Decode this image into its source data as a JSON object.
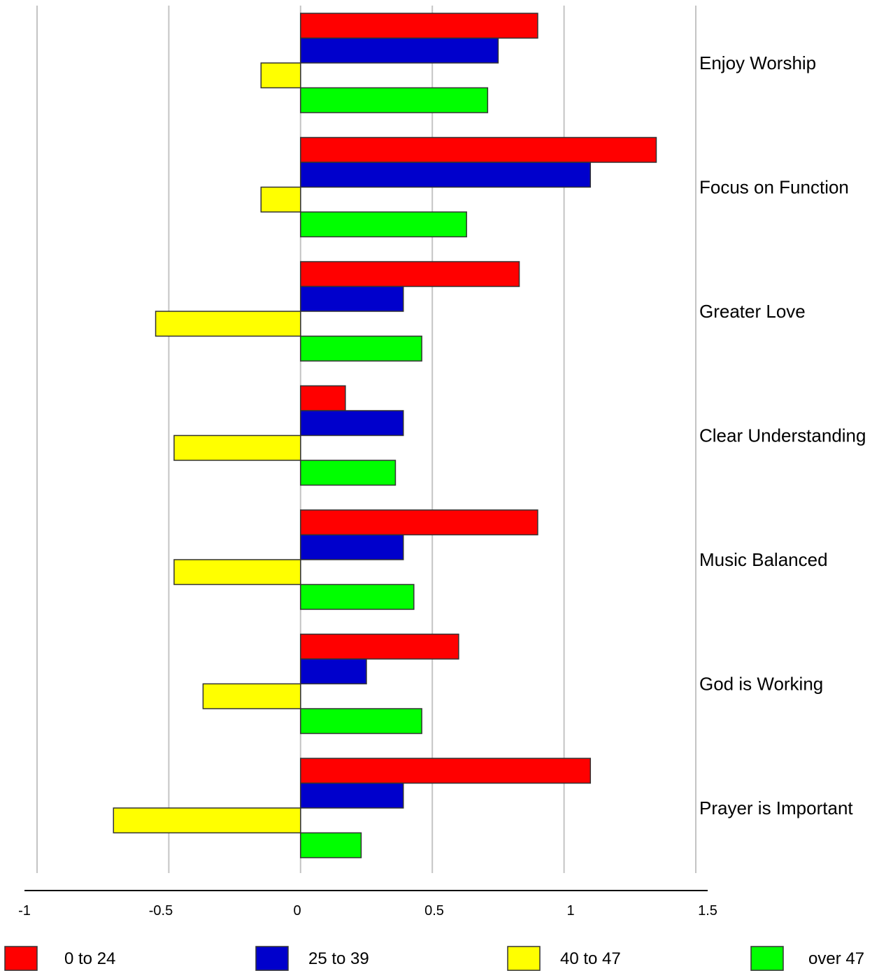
{
  "chart_data": {
    "type": "bar",
    "orientation": "horizontal",
    "categories": [
      "Enjoy Worship",
      "Focus on Function",
      "Greater Love",
      "Clear Understanding",
      "Music Balanced",
      "God is Working",
      "Prayer is Important"
    ],
    "series": [
      {
        "name": "0 to 24",
        "color": "#ff0000",
        "values": [
          0.9,
          1.35,
          0.83,
          0.17,
          0.9,
          0.6,
          1.1
        ]
      },
      {
        "name": "25 to 39",
        "color": "#0000cc",
        "values": [
          0.75,
          1.1,
          0.39,
          0.39,
          0.39,
          0.25,
          0.39
        ]
      },
      {
        "name": "40 to 47",
        "color": "#ffff00",
        "values": [
          -0.15,
          -0.15,
          -0.55,
          -0.48,
          -0.48,
          -0.37,
          -0.71
        ]
      },
      {
        "name": "over 47",
        "color": "#00ff00",
        "values": [
          0.71,
          0.63,
          0.46,
          0.36,
          0.43,
          0.46,
          0.23
        ]
      }
    ],
    "xlim": [
      -1,
      1.5
    ],
    "xticks": [
      "-1",
      "-0.5",
      "0",
      "0.5",
      "1",
      "1.5"
    ],
    "gridlines": [
      -1,
      -0.5,
      0,
      0.5,
      1,
      1.5
    ],
    "grid": true,
    "legend": "bottom",
    "category_labels_side": "right"
  }
}
